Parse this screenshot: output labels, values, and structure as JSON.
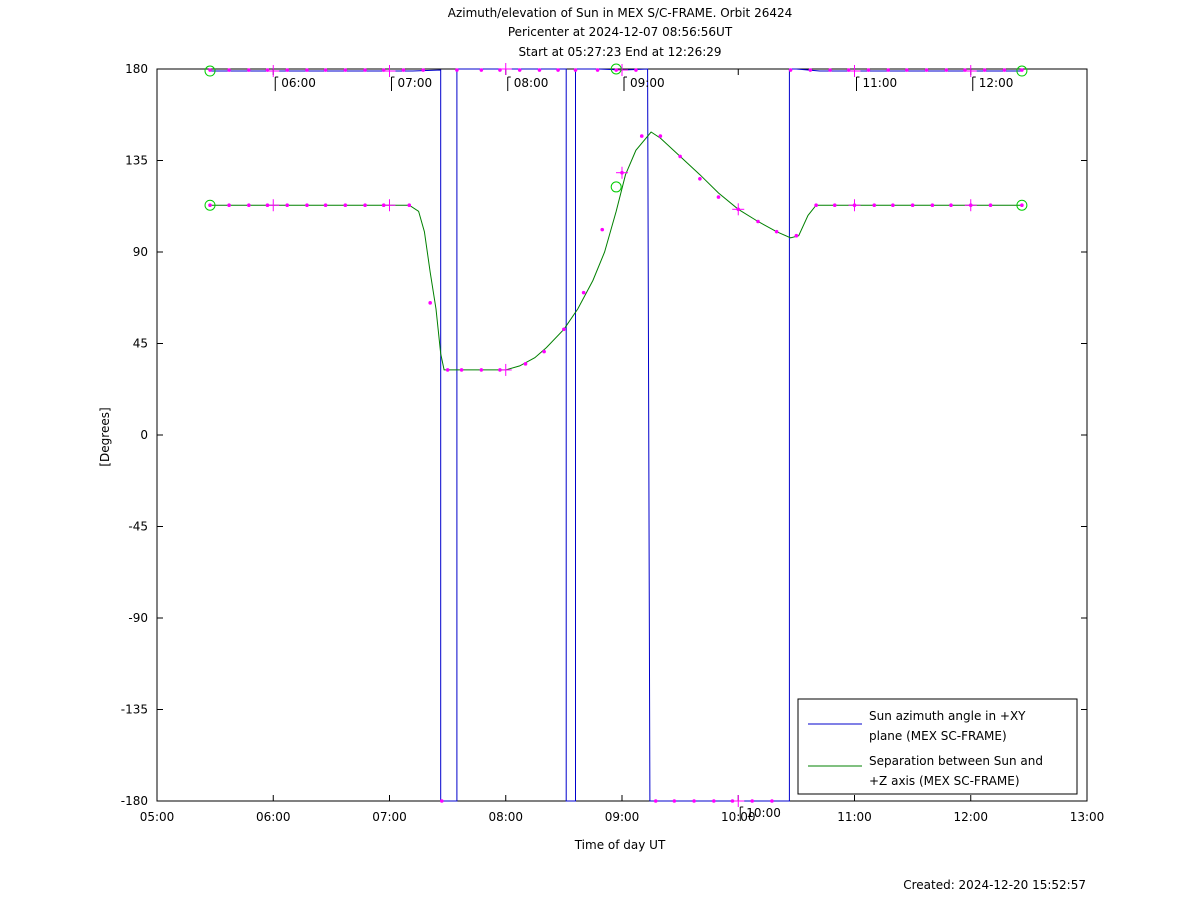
{
  "chart_data": {
    "type": "line",
    "title": [
      "Azimuth/elevation of Sun in MEX S/C-FRAME.  Orbit 26424",
      "Pericenter at 2024-12-07 08:56:56UT",
      "Start at 05:27:23 End at 12:26:29"
    ],
    "xlabel": "Time of day UT",
    "ylabel": "[Degrees]",
    "xlim": [
      5,
      13
    ],
    "ylim": [
      -180,
      180
    ],
    "x_ticks": [
      {
        "value": 5,
        "label": "05:00"
      },
      {
        "value": 6,
        "label": "06:00"
      },
      {
        "value": 7,
        "label": "07:00"
      },
      {
        "value": 8,
        "label": "08:00"
      },
      {
        "value": 9,
        "label": "09:00"
      },
      {
        "value": 10,
        "label": "10:00"
      },
      {
        "value": 11,
        "label": "11:00"
      },
      {
        "value": 12,
        "label": "12:00"
      },
      {
        "value": 13,
        "label": "13:00"
      }
    ],
    "y_ticks": [
      {
        "value": 180,
        "label": "180"
      },
      {
        "value": 135,
        "label": "135"
      },
      {
        "value": 90,
        "label": "90"
      },
      {
        "value": 45,
        "label": "45"
      },
      {
        "value": 0,
        "label": "0"
      },
      {
        "value": -45,
        "label": "-45"
      },
      {
        "value": -90,
        "label": "-90"
      },
      {
        "value": -135,
        "label": "-135"
      },
      {
        "value": -180,
        "label": "-180"
      }
    ],
    "hour_markers": [
      {
        "x": 6,
        "label": "06:00"
      },
      {
        "x": 7,
        "label": "07:00"
      },
      {
        "x": 8,
        "label": "08:00"
      },
      {
        "x": 9,
        "label": "09:00"
      },
      {
        "x": 10,
        "label": "10:00"
      },
      {
        "x": 11,
        "label": "11:00"
      },
      {
        "x": 12,
        "label": "12:00"
      }
    ],
    "legend_position": "bottom-right",
    "series": [
      {
        "name": "Sun azimuth angle in +XY plane (MEX SC-FRAME)",
        "name_lines": [
          "Sun azimuth angle in +XY",
          "plane (MEX SC-FRAME)"
        ],
        "color": "#0000cc",
        "points": [
          [
            5.456,
            179
          ],
          [
            7.0,
            179
          ],
          [
            7.2,
            179
          ],
          [
            7.44,
            179.5
          ],
          [
            7.44,
            -180
          ],
          [
            7.58,
            -180
          ],
          [
            7.58,
            180
          ],
          [
            7.7,
            180
          ],
          [
            8.0,
            180
          ],
          [
            8.4,
            180
          ],
          [
            8.52,
            180
          ],
          [
            8.52,
            -180
          ],
          [
            8.6,
            -180
          ],
          [
            8.6,
            180
          ],
          [
            8.8,
            180
          ],
          [
            9.0,
            179.5
          ],
          [
            9.22,
            180
          ],
          [
            9.24,
            -180
          ],
          [
            10.0,
            -180
          ],
          [
            10.44,
            -180
          ],
          [
            10.44,
            180
          ],
          [
            10.5,
            180
          ],
          [
            10.7,
            179
          ],
          [
            11.0,
            179
          ],
          [
            12.0,
            179
          ],
          [
            12.44,
            179
          ]
        ],
        "markers": [
          5.456,
          5.62,
          5.79,
          5.95,
          6.12,
          6.29,
          6.45,
          6.62,
          6.79,
          6.95,
          7.12,
          7.29,
          7.45,
          7.58,
          7.79,
          7.95,
          8.12,
          8.29,
          8.45,
          8.6,
          8.79,
          8.95,
          9.12,
          9.29,
          9.45,
          9.62,
          9.79,
          9.95,
          10.12,
          10.29,
          10.45,
          10.62,
          10.79,
          10.95,
          11.12,
          11.29,
          11.45,
          11.62,
          11.79,
          11.95,
          12.12,
          12.29,
          12.44
        ]
      },
      {
        "name": "Separation between Sun and +Z axis (MEX SC-FRAME)",
        "name_lines": [
          "Separation between Sun and",
          "+Z axis (MEX SC-FRAME)"
        ],
        "color": "#008000",
        "points": [
          [
            5.456,
            113
          ],
          [
            6.0,
            113
          ],
          [
            6.5,
            113
          ],
          [
            7.0,
            113
          ],
          [
            7.17,
            113
          ],
          [
            7.25,
            110
          ],
          [
            7.3,
            100
          ],
          [
            7.35,
            80
          ],
          [
            7.4,
            62
          ],
          [
            7.44,
            40
          ],
          [
            7.47,
            32
          ],
          [
            7.5,
            32
          ],
          [
            7.75,
            32
          ],
          [
            8.0,
            32
          ],
          [
            8.12,
            34
          ],
          [
            8.25,
            38
          ],
          [
            8.35,
            43
          ],
          [
            8.5,
            52
          ],
          [
            8.62,
            62
          ],
          [
            8.75,
            76
          ],
          [
            8.85,
            90
          ],
          [
            8.95,
            110
          ],
          [
            9.03,
            128
          ],
          [
            9.12,
            140
          ],
          [
            9.25,
            149
          ],
          [
            9.33,
            146
          ],
          [
            9.5,
            137
          ],
          [
            9.67,
            128
          ],
          [
            9.83,
            119
          ],
          [
            10.0,
            111
          ],
          [
            10.17,
            105
          ],
          [
            10.33,
            100
          ],
          [
            10.45,
            97
          ],
          [
            10.52,
            98
          ],
          [
            10.6,
            108
          ],
          [
            10.67,
            113
          ],
          [
            11.0,
            113
          ],
          [
            11.5,
            113
          ],
          [
            12.0,
            113
          ],
          [
            12.44,
            113
          ]
        ],
        "markers": [
          [
            5.456,
            113
          ],
          [
            5.62,
            113
          ],
          [
            5.79,
            113
          ],
          [
            5.95,
            113
          ],
          [
            6.12,
            113
          ],
          [
            6.29,
            113
          ],
          [
            6.45,
            113
          ],
          [
            6.62,
            113
          ],
          [
            6.79,
            113
          ],
          [
            6.95,
            113
          ],
          [
            7.17,
            113
          ],
          [
            7.35,
            65
          ],
          [
            7.5,
            32
          ],
          [
            7.62,
            32
          ],
          [
            7.79,
            32
          ],
          [
            7.95,
            32
          ],
          [
            8.17,
            35
          ],
          [
            8.33,
            41
          ],
          [
            8.5,
            52
          ],
          [
            8.67,
            70
          ],
          [
            8.83,
            101
          ],
          [
            9.0,
            129
          ],
          [
            9.17,
            147
          ],
          [
            9.33,
            147
          ],
          [
            9.5,
            137
          ],
          [
            9.67,
            126
          ],
          [
            9.83,
            117
          ],
          [
            10.0,
            111
          ],
          [
            10.17,
            105
          ],
          [
            10.33,
            100
          ],
          [
            10.5,
            98
          ],
          [
            10.67,
            113
          ],
          [
            10.83,
            113
          ],
          [
            11.0,
            113
          ],
          [
            11.17,
            113
          ],
          [
            11.33,
            113
          ],
          [
            11.5,
            113
          ],
          [
            11.67,
            113
          ],
          [
            11.83,
            113
          ],
          [
            12.0,
            113
          ],
          [
            12.17,
            113
          ],
          [
            12.44,
            113
          ]
        ]
      }
    ],
    "hour_crosses": [
      {
        "series": 0,
        "x": 6.0,
        "y": 179
      },
      {
        "series": 0,
        "x": 7.0,
        "y": 179
      },
      {
        "series": 0,
        "x": 8.0,
        "y": 180
      },
      {
        "series": 0,
        "x": 9.0,
        "y": 179.5
      },
      {
        "series": 0,
        "x": 10.0,
        "y": -180
      },
      {
        "series": 0,
        "x": 11.0,
        "y": 179
      },
      {
        "series": 0,
        "x": 12.0,
        "y": 179
      },
      {
        "series": 1,
        "x": 6.0,
        "y": 113
      },
      {
        "series": 1,
        "x": 7.0,
        "y": 113
      },
      {
        "series": 1,
        "x": 8.0,
        "y": 32
      },
      {
        "series": 1,
        "x": 9.0,
        "y": 129
      },
      {
        "series": 1,
        "x": 10.0,
        "y": 111
      },
      {
        "series": 1,
        "x": 11.0,
        "y": 113
      },
      {
        "series": 1,
        "x": 12.0,
        "y": 113
      }
    ],
    "circle_markers": [
      {
        "x": 5.456,
        "y": 179
      },
      {
        "x": 8.95,
        "y": 180
      },
      {
        "x": 12.44,
        "y": 179
      },
      {
        "x": 5.456,
        "y": 113
      },
      {
        "x": 8.95,
        "y": 122
      },
      {
        "x": 12.44,
        "y": 113
      }
    ],
    "marker_color": "#ff00ff",
    "circle_color": "#00cc00"
  },
  "footer": {
    "created": "Created: 2024-12-20 15:52:57"
  }
}
